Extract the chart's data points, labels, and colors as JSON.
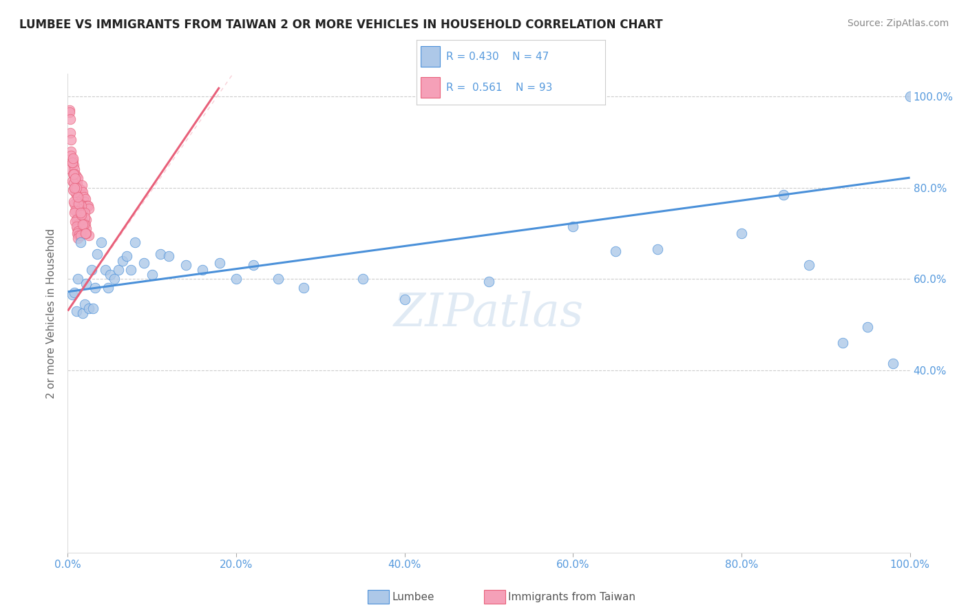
{
  "title": "LUMBEE VS IMMIGRANTS FROM TAIWAN 2 OR MORE VEHICLES IN HOUSEHOLD CORRELATION CHART",
  "source": "Source: ZipAtlas.com",
  "ylabel": "2 or more Vehicles in Household",
  "lumbee_R": 0.43,
  "lumbee_N": 47,
  "taiwan_R": 0.561,
  "taiwan_N": 93,
  "lumbee_color": "#adc8e8",
  "taiwan_color": "#f5a0b8",
  "lumbee_line_color": "#4a90d9",
  "taiwan_line_color": "#e8607a",
  "legend_lumbee": "Lumbee",
  "legend_taiwan": "Immigrants from Taiwan",
  "watermark": "ZIPatlas",
  "title_color": "#222222",
  "source_color": "#888888",
  "tick_color": "#5599dd",
  "ylabel_color": "#666666",
  "grid_color": "#cccccc",
  "xlim": [
    0.0,
    1.0
  ],
  "ylim": [
    0.0,
    1.05
  ],
  "x_tick_vals": [
    0.0,
    0.2,
    0.4,
    0.6,
    0.8,
    1.0
  ],
  "y_tick_vals": [
    0.4,
    0.6,
    0.8,
    1.0
  ],
  "lumbee_line_x": [
    0.0,
    1.0
  ],
  "lumbee_line_y": [
    0.572,
    0.822
  ],
  "taiwan_line_x": [
    0.0,
    0.18
  ],
  "taiwan_line_y": [
    0.53,
    1.02
  ],
  "lumbee_x": [
    0.005,
    0.008,
    0.01,
    0.012,
    0.015,
    0.018,
    0.02,
    0.022,
    0.025,
    0.028,
    0.03,
    0.032,
    0.035,
    0.04,
    0.045,
    0.048,
    0.05,
    0.055,
    0.06,
    0.065,
    0.07,
    0.075,
    0.08,
    0.09,
    0.1,
    0.11,
    0.12,
    0.14,
    0.16,
    0.18,
    0.2,
    0.22,
    0.25,
    0.28,
    0.35,
    0.4,
    0.5,
    0.6,
    0.65,
    0.7,
    0.8,
    0.85,
    0.88,
    0.92,
    0.95,
    0.98,
    1.0
  ],
  "lumbee_y": [
    0.565,
    0.57,
    0.53,
    0.6,
    0.68,
    0.525,
    0.545,
    0.59,
    0.535,
    0.62,
    0.535,
    0.58,
    0.655,
    0.68,
    0.62,
    0.58,
    0.61,
    0.6,
    0.62,
    0.64,
    0.65,
    0.62,
    0.68,
    0.635,
    0.61,
    0.655,
    0.65,
    0.63,
    0.62,
    0.635,
    0.6,
    0.63,
    0.6,
    0.58,
    0.6,
    0.555,
    0.595,
    0.715,
    0.66,
    0.665,
    0.7,
    0.785,
    0.63,
    0.46,
    0.495,
    0.415,
    1.0
  ],
  "taiwan_x": [
    0.002,
    0.003,
    0.004,
    0.005,
    0.006,
    0.007,
    0.008,
    0.009,
    0.01,
    0.011,
    0.012,
    0.013,
    0.014,
    0.015,
    0.016,
    0.017,
    0.018,
    0.019,
    0.02,
    0.021,
    0.022,
    0.023,
    0.024,
    0.025,
    0.004,
    0.006,
    0.008,
    0.01,
    0.012,
    0.014,
    0.016,
    0.018,
    0.02,
    0.022,
    0.005,
    0.007,
    0.009,
    0.011,
    0.013,
    0.015,
    0.017,
    0.019,
    0.021,
    0.006,
    0.008,
    0.01,
    0.012,
    0.014,
    0.016,
    0.018,
    0.007,
    0.009,
    0.011,
    0.013,
    0.015,
    0.017,
    0.008,
    0.01,
    0.012,
    0.014,
    0.016,
    0.009,
    0.011,
    0.013,
    0.015,
    0.01,
    0.012,
    0.014,
    0.011,
    0.013,
    0.012,
    0.02,
    0.022,
    0.025,
    0.015,
    0.003,
    0.005,
    0.007,
    0.01,
    0.013,
    0.016,
    0.019,
    0.022,
    0.002,
    0.004,
    0.006,
    0.009,
    0.012,
    0.015,
    0.018,
    0.021,
    0.003,
    0.008
  ],
  "taiwan_y": [
    0.97,
    0.84,
    0.88,
    0.815,
    0.86,
    0.85,
    0.84,
    0.83,
    0.825,
    0.81,
    0.82,
    0.8,
    0.79,
    0.79,
    0.795,
    0.805,
    0.79,
    0.78,
    0.77,
    0.775,
    0.76,
    0.76,
    0.76,
    0.755,
    0.87,
    0.83,
    0.8,
    0.785,
    0.76,
    0.765,
    0.76,
    0.745,
    0.745,
    0.73,
    0.855,
    0.81,
    0.79,
    0.77,
    0.755,
    0.74,
    0.73,
    0.72,
    0.72,
    0.795,
    0.765,
    0.75,
    0.735,
    0.73,
    0.72,
    0.715,
    0.77,
    0.75,
    0.73,
    0.72,
    0.715,
    0.71,
    0.745,
    0.73,
    0.72,
    0.71,
    0.7,
    0.725,
    0.71,
    0.705,
    0.7,
    0.715,
    0.705,
    0.695,
    0.7,
    0.695,
    0.69,
    0.735,
    0.71,
    0.695,
    0.695,
    0.92,
    0.855,
    0.83,
    0.8,
    0.765,
    0.74,
    0.72,
    0.7,
    0.965,
    0.905,
    0.865,
    0.82,
    0.78,
    0.745,
    0.72,
    0.7,
    0.95,
    0.8
  ]
}
